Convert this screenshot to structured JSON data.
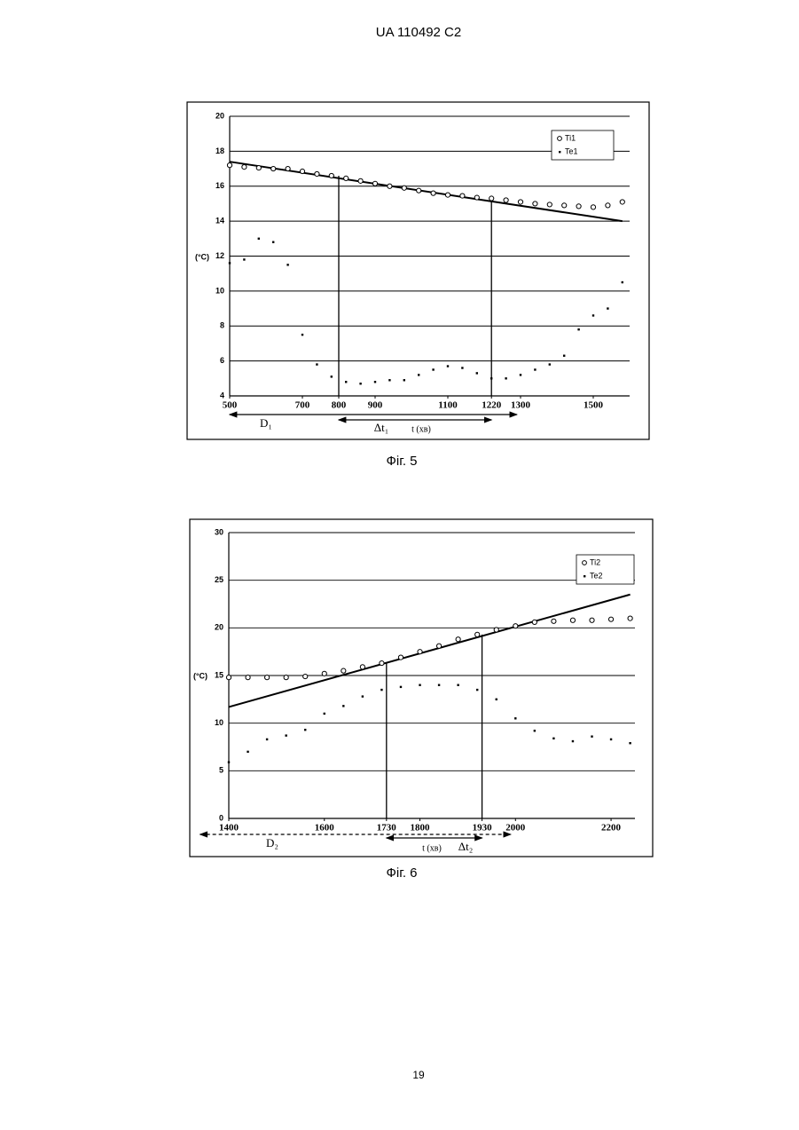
{
  "header": "UA   110492   C2",
  "page_number": "19",
  "chart_data": [
    {
      "type": "scatter",
      "caption": "Фіг. 5",
      "y_label": "(°C)",
      "x_label": "t (хв)",
      "x": [
        500,
        540,
        580,
        620,
        660,
        700,
        740,
        780,
        820,
        860,
        900,
        940,
        980,
        1020,
        1060,
        1100,
        1140,
        1180,
        1220,
        1260,
        1300,
        1340,
        1380,
        1420,
        1460,
        1500,
        1540,
        1580
      ],
      "series": [
        {
          "name": "Ti1",
          "color": "#000000",
          "marker": "circle",
          "values": [
            17.2,
            17.1,
            17.05,
            17.0,
            17.0,
            16.85,
            16.7,
            16.6,
            16.45,
            16.3,
            16.15,
            16.0,
            15.9,
            15.75,
            15.6,
            15.5,
            15.45,
            15.35,
            15.3,
            15.2,
            15.1,
            15.0,
            14.95,
            14.9,
            14.85,
            14.8,
            14.9,
            15.1
          ]
        },
        {
          "name": "Te1",
          "color": "#000000",
          "marker": "square",
          "values": [
            11.6,
            11.8,
            13.0,
            12.8,
            11.5,
            7.5,
            5.8,
            5.1,
            4.8,
            4.7,
            4.8,
            4.9,
            4.9,
            5.2,
            5.5,
            5.7,
            5.6,
            5.3,
            5.0,
            5.0,
            5.2,
            5.5,
            5.8,
            6.3,
            7.8,
            8.6,
            9.0,
            10.5
          ]
        }
      ],
      "trend": {
        "x": [
          500,
          1580
        ],
        "y": [
          17.4,
          14.0
        ]
      },
      "markers": [
        800,
        1220
      ],
      "spans": [
        {
          "label": "D₁",
          "from": 500,
          "to": 1290
        },
        {
          "label": "Δt₁",
          "from": 800,
          "to": 1220
        }
      ],
      "xlim": [
        500,
        1600
      ],
      "xticks": [
        500,
        700,
        800,
        900,
        1100,
        1220,
        1300,
        1500
      ],
      "ylim": [
        4,
        20
      ],
      "yticks": [
        4,
        6,
        8,
        10,
        12,
        14,
        16,
        18,
        20
      ],
      "grid": true,
      "legend": "top-right"
    },
    {
      "type": "scatter",
      "caption": "Фіг. 6",
      "y_label": "(°C)",
      "x_label": "t (хв)",
      "x": [
        1400,
        1440,
        1480,
        1520,
        1560,
        1600,
        1640,
        1680,
        1720,
        1760,
        1800,
        1840,
        1880,
        1920,
        1960,
        2000,
        2040,
        2080,
        2120,
        2160,
        2200,
        2240
      ],
      "series": [
        {
          "name": "Ti2",
          "color": "#000000",
          "marker": "circle",
          "values": [
            14.8,
            14.8,
            14.8,
            14.8,
            14.9,
            15.2,
            15.5,
            15.9,
            16.3,
            16.9,
            17.5,
            18.1,
            18.8,
            19.3,
            19.8,
            20.2,
            20.6,
            20.7,
            20.8,
            20.8,
            20.9,
            21.0
          ]
        },
        {
          "name": "Te2",
          "color": "#000000",
          "marker": "square",
          "values": [
            5.9,
            7.0,
            8.3,
            8.7,
            9.3,
            11.0,
            11.8,
            12.8,
            13.5,
            13.8,
            14.0,
            14.0,
            14.0,
            13.5,
            12.5,
            10.5,
            9.2,
            8.4,
            8.1,
            8.6,
            8.3,
            7.9
          ]
        }
      ],
      "trend": {
        "x": [
          1400,
          2240
        ],
        "y": [
          11.7,
          23.5
        ]
      },
      "markers": [
        1730,
        1930
      ],
      "spans": [
        {
          "label": "D₂",
          "from": 1340,
          "to": 1990
        },
        {
          "label": "Δt₂",
          "from": 1730,
          "to": 1930
        }
      ],
      "xlim": [
        1400,
        2250
      ],
      "xticks": [
        1400,
        1600,
        1730,
        1800,
        1930,
        2000,
        2200
      ],
      "ylim": [
        0,
        30
      ],
      "yticks": [
        0,
        5,
        10,
        15,
        20,
        25,
        30
      ],
      "grid": true,
      "legend": "top-right"
    }
  ]
}
